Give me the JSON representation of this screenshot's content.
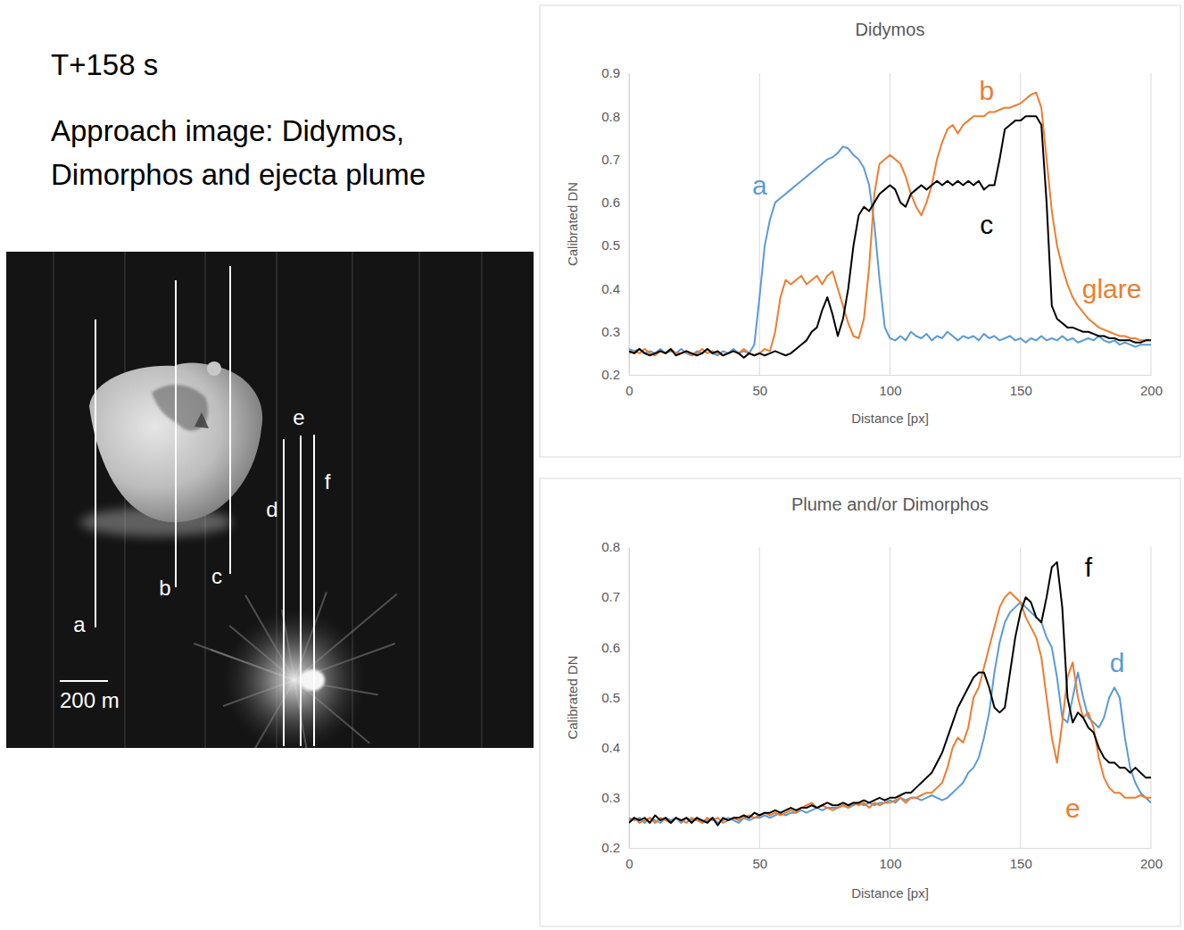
{
  "title": "T+158 s",
  "subtitle": "Approach image: Didymos, Dimorphos and ejecta plume",
  "image": {
    "scale_bar": "200 m"
  },
  "chart_data": [
    {
      "type": "line",
      "title": "Didymos",
      "x_label": "Distance [px]",
      "y_label": "Calibrated DN",
      "xlim": [
        0,
        200
      ],
      "xticks": [
        0,
        50,
        100,
        150,
        200
      ],
      "ylim": [
        0.2,
        0.9
      ],
      "yticks": [
        0.2,
        0.3,
        0.4,
        0.5,
        0.6,
        0.7,
        0.8,
        0.9
      ],
      "grid": "x",
      "x": [
        0,
        2,
        4,
        6,
        8,
        10,
        12,
        14,
        16,
        18,
        20,
        22,
        24,
        26,
        28,
        30,
        32,
        34,
        36,
        38,
        40,
        42,
        44,
        46,
        48,
        50,
        52,
        54,
        56,
        58,
        60,
        62,
        64,
        66,
        68,
        70,
        72,
        74,
        76,
        78,
        80,
        82,
        84,
        86,
        88,
        90,
        92,
        94,
        96,
        98,
        100,
        102,
        104,
        106,
        108,
        110,
        112,
        114,
        116,
        118,
        120,
        122,
        124,
        126,
        128,
        130,
        132,
        134,
        136,
        138,
        140,
        142,
        144,
        146,
        148,
        150,
        152,
        154,
        156,
        158,
        160,
        162,
        164,
        166,
        168,
        170,
        172,
        174,
        176,
        178,
        180,
        182,
        184,
        186,
        188,
        190,
        192,
        194,
        196,
        198,
        200
      ],
      "series": [
        {
          "name": "a",
          "color": "#5b9bd5",
          "values": [
            0.26,
            0.255,
            0.26,
            0.25,
            0.255,
            0.25,
            0.26,
            0.25,
            0.255,
            0.25,
            0.26,
            0.25,
            0.245,
            0.255,
            0.25,
            0.26,
            0.25,
            0.245,
            0.255,
            0.25,
            0.26,
            0.25,
            0.255,
            0.25,
            0.27,
            0.38,
            0.5,
            0.56,
            0.6,
            0.61,
            0.62,
            0.63,
            0.64,
            0.65,
            0.66,
            0.67,
            0.68,
            0.69,
            0.7,
            0.705,
            0.715,
            0.73,
            0.725,
            0.71,
            0.7,
            0.68,
            0.64,
            0.55,
            0.42,
            0.31,
            0.285,
            0.28,
            0.29,
            0.28,
            0.3,
            0.29,
            0.285,
            0.295,
            0.28,
            0.29,
            0.285,
            0.3,
            0.29,
            0.28,
            0.29,
            0.285,
            0.29,
            0.28,
            0.295,
            0.285,
            0.29,
            0.28,
            0.285,
            0.29,
            0.28,
            0.285,
            0.275,
            0.285,
            0.28,
            0.29,
            0.28,
            0.285,
            0.28,
            0.29,
            0.28,
            0.285,
            0.275,
            0.28,
            0.285,
            0.28,
            0.29,
            0.28,
            0.275,
            0.28,
            0.27,
            0.275,
            0.27,
            0.265,
            0.27,
            0.27,
            0.27
          ]
        },
        {
          "name": "b",
          "color": "#ed7d31",
          "values": [
            0.25,
            0.255,
            0.25,
            0.26,
            0.25,
            0.245,
            0.255,
            0.25,
            0.26,
            0.25,
            0.25,
            0.255,
            0.245,
            0.25,
            0.26,
            0.25,
            0.255,
            0.25,
            0.245,
            0.25,
            0.255,
            0.25,
            0.26,
            0.25,
            0.245,
            0.25,
            0.26,
            0.255,
            0.3,
            0.38,
            0.42,
            0.41,
            0.42,
            0.43,
            0.41,
            0.42,
            0.43,
            0.41,
            0.43,
            0.44,
            0.4,
            0.36,
            0.32,
            0.29,
            0.285,
            0.33,
            0.45,
            0.62,
            0.69,
            0.7,
            0.71,
            0.7,
            0.69,
            0.66,
            0.62,
            0.59,
            0.57,
            0.6,
            0.64,
            0.7,
            0.74,
            0.77,
            0.78,
            0.76,
            0.78,
            0.79,
            0.8,
            0.8,
            0.8,
            0.81,
            0.81,
            0.815,
            0.82,
            0.82,
            0.825,
            0.83,
            0.84,
            0.85,
            0.855,
            0.82,
            0.7,
            0.58,
            0.5,
            0.45,
            0.41,
            0.38,
            0.36,
            0.345,
            0.33,
            0.32,
            0.31,
            0.305,
            0.3,
            0.295,
            0.29,
            0.29,
            0.285,
            0.285,
            0.28,
            0.28,
            0.28
          ]
        },
        {
          "name": "c",
          "color": "#000000",
          "values": [
            0.255,
            0.25,
            0.26,
            0.25,
            0.245,
            0.25,
            0.255,
            0.25,
            0.26,
            0.245,
            0.25,
            0.255,
            0.25,
            0.245,
            0.25,
            0.26,
            0.25,
            0.255,
            0.245,
            0.25,
            0.255,
            0.25,
            0.24,
            0.25,
            0.245,
            0.25,
            0.245,
            0.25,
            0.255,
            0.25,
            0.245,
            0.25,
            0.26,
            0.27,
            0.28,
            0.3,
            0.31,
            0.35,
            0.38,
            0.34,
            0.29,
            0.33,
            0.4,
            0.5,
            0.57,
            0.59,
            0.58,
            0.6,
            0.62,
            0.63,
            0.64,
            0.63,
            0.6,
            0.59,
            0.62,
            0.63,
            0.64,
            0.63,
            0.64,
            0.65,
            0.64,
            0.65,
            0.64,
            0.65,
            0.64,
            0.65,
            0.64,
            0.65,
            0.63,
            0.64,
            0.64,
            0.7,
            0.77,
            0.78,
            0.79,
            0.79,
            0.8,
            0.8,
            0.8,
            0.78,
            0.6,
            0.36,
            0.33,
            0.32,
            0.31,
            0.31,
            0.305,
            0.3,
            0.3,
            0.295,
            0.29,
            0.29,
            0.285,
            0.285,
            0.28,
            0.28,
            0.28,
            0.275,
            0.275,
            0.28,
            0.28
          ]
        }
      ],
      "annotations": [
        {
          "series": 0,
          "x": 50,
          "y": 0.64
        },
        {
          "series": 1,
          "x": 137,
          "y": 0.86
        },
        {
          "series": 2,
          "x": 137,
          "y": 0.55
        },
        {
          "text": "glare",
          "x": 185,
          "y": 0.4,
          "color": "#ed7d31"
        }
      ]
    },
    {
      "type": "line",
      "title": "Plume and/or Dimorphos",
      "x_label": "Distance [px]",
      "y_label": "Calibrated DN",
      "xlim": [
        0,
        200
      ],
      "xticks": [
        0,
        50,
        100,
        150,
        200
      ],
      "ylim": [
        0.2,
        0.8
      ],
      "yticks": [
        0.2,
        0.3,
        0.4,
        0.5,
        0.6,
        0.7,
        0.8
      ],
      "grid": "x",
      "x": [
        0,
        2,
        4,
        6,
        8,
        10,
        12,
        14,
        16,
        18,
        20,
        22,
        24,
        26,
        28,
        30,
        32,
        34,
        36,
        38,
        40,
        42,
        44,
        46,
        48,
        50,
        52,
        54,
        56,
        58,
        60,
        62,
        64,
        66,
        68,
        70,
        72,
        74,
        76,
        78,
        80,
        82,
        84,
        86,
        88,
        90,
        92,
        94,
        96,
        98,
        100,
        102,
        104,
        106,
        108,
        110,
        112,
        114,
        116,
        118,
        120,
        122,
        124,
        126,
        128,
        130,
        132,
        134,
        136,
        138,
        140,
        142,
        144,
        146,
        148,
        150,
        152,
        154,
        156,
        158,
        160,
        162,
        164,
        166,
        168,
        170,
        172,
        174,
        176,
        178,
        180,
        182,
        184,
        186,
        188,
        190,
        192,
        194,
        196,
        198,
        200
      ],
      "series": [
        {
          "name": "d",
          "color": "#5b9bd5",
          "values": [
            0.26,
            0.255,
            0.26,
            0.25,
            0.26,
            0.255,
            0.25,
            0.26,
            0.255,
            0.26,
            0.25,
            0.26,
            0.255,
            0.26,
            0.25,
            0.255,
            0.26,
            0.25,
            0.255,
            0.26,
            0.255,
            0.25,
            0.26,
            0.255,
            0.26,
            0.26,
            0.265,
            0.26,
            0.265,
            0.27,
            0.265,
            0.27,
            0.27,
            0.275,
            0.27,
            0.275,
            0.28,
            0.275,
            0.28,
            0.28,
            0.28,
            0.285,
            0.28,
            0.285,
            0.29,
            0.285,
            0.29,
            0.285,
            0.29,
            0.29,
            0.295,
            0.29,
            0.3,
            0.295,
            0.3,
            0.3,
            0.295,
            0.3,
            0.305,
            0.3,
            0.295,
            0.3,
            0.31,
            0.32,
            0.33,
            0.35,
            0.36,
            0.38,
            0.42,
            0.47,
            0.55,
            0.61,
            0.65,
            0.67,
            0.68,
            0.69,
            0.68,
            0.67,
            0.66,
            0.65,
            0.62,
            0.6,
            0.54,
            0.46,
            0.45,
            0.5,
            0.55,
            0.5,
            0.46,
            0.45,
            0.44,
            0.46,
            0.5,
            0.52,
            0.5,
            0.42,
            0.36,
            0.33,
            0.31,
            0.3,
            0.29
          ]
        },
        {
          "name": "e",
          "color": "#ed7d31",
          "values": [
            0.255,
            0.26,
            0.25,
            0.255,
            0.26,
            0.25,
            0.26,
            0.255,
            0.25,
            0.26,
            0.255,
            0.25,
            0.26,
            0.255,
            0.25,
            0.26,
            0.255,
            0.26,
            0.25,
            0.255,
            0.26,
            0.255,
            0.26,
            0.265,
            0.26,
            0.265,
            0.27,
            0.265,
            0.27,
            0.265,
            0.27,
            0.275,
            0.27,
            0.28,
            0.285,
            0.29,
            0.28,
            0.285,
            0.28,
            0.275,
            0.28,
            0.285,
            0.28,
            0.29,
            0.285,
            0.29,
            0.28,
            0.29,
            0.285,
            0.29,
            0.29,
            0.295,
            0.3,
            0.29,
            0.3,
            0.3,
            0.305,
            0.31,
            0.31,
            0.32,
            0.33,
            0.36,
            0.4,
            0.42,
            0.41,
            0.44,
            0.5,
            0.52,
            0.56,
            0.6,
            0.64,
            0.68,
            0.7,
            0.71,
            0.7,
            0.69,
            0.66,
            0.64,
            0.62,
            0.58,
            0.5,
            0.42,
            0.37,
            0.45,
            0.54,
            0.57,
            0.5,
            0.46,
            0.47,
            0.44,
            0.38,
            0.34,
            0.32,
            0.31,
            0.31,
            0.3,
            0.3,
            0.3,
            0.305,
            0.3,
            0.3
          ]
        },
        {
          "name": "f",
          "color": "#000000",
          "values": [
            0.25,
            0.26,
            0.255,
            0.26,
            0.25,
            0.265,
            0.255,
            0.26,
            0.25,
            0.26,
            0.255,
            0.26,
            0.25,
            0.26,
            0.255,
            0.25,
            0.26,
            0.245,
            0.26,
            0.255,
            0.26,
            0.26,
            0.265,
            0.26,
            0.27,
            0.265,
            0.27,
            0.27,
            0.275,
            0.27,
            0.275,
            0.28,
            0.275,
            0.28,
            0.28,
            0.285,
            0.28,
            0.285,
            0.29,
            0.285,
            0.285,
            0.29,
            0.285,
            0.29,
            0.29,
            0.295,
            0.29,
            0.295,
            0.3,
            0.295,
            0.3,
            0.3,
            0.305,
            0.31,
            0.31,
            0.32,
            0.33,
            0.34,
            0.35,
            0.37,
            0.39,
            0.42,
            0.45,
            0.48,
            0.5,
            0.52,
            0.54,
            0.55,
            0.55,
            0.52,
            0.48,
            0.47,
            0.48,
            0.55,
            0.62,
            0.67,
            0.7,
            0.69,
            0.66,
            0.65,
            0.7,
            0.76,
            0.77,
            0.68,
            0.5,
            0.45,
            0.47,
            0.46,
            0.44,
            0.43,
            0.4,
            0.38,
            0.37,
            0.37,
            0.36,
            0.36,
            0.35,
            0.36,
            0.35,
            0.34,
            0.34
          ]
        }
      ],
      "annotations": [
        {
          "series": 0,
          "x": 187,
          "y": 0.57
        },
        {
          "series": 1,
          "x": 170,
          "y": 0.28
        },
        {
          "series": 2,
          "x": 176,
          "y": 0.76
        }
      ]
    }
  ]
}
